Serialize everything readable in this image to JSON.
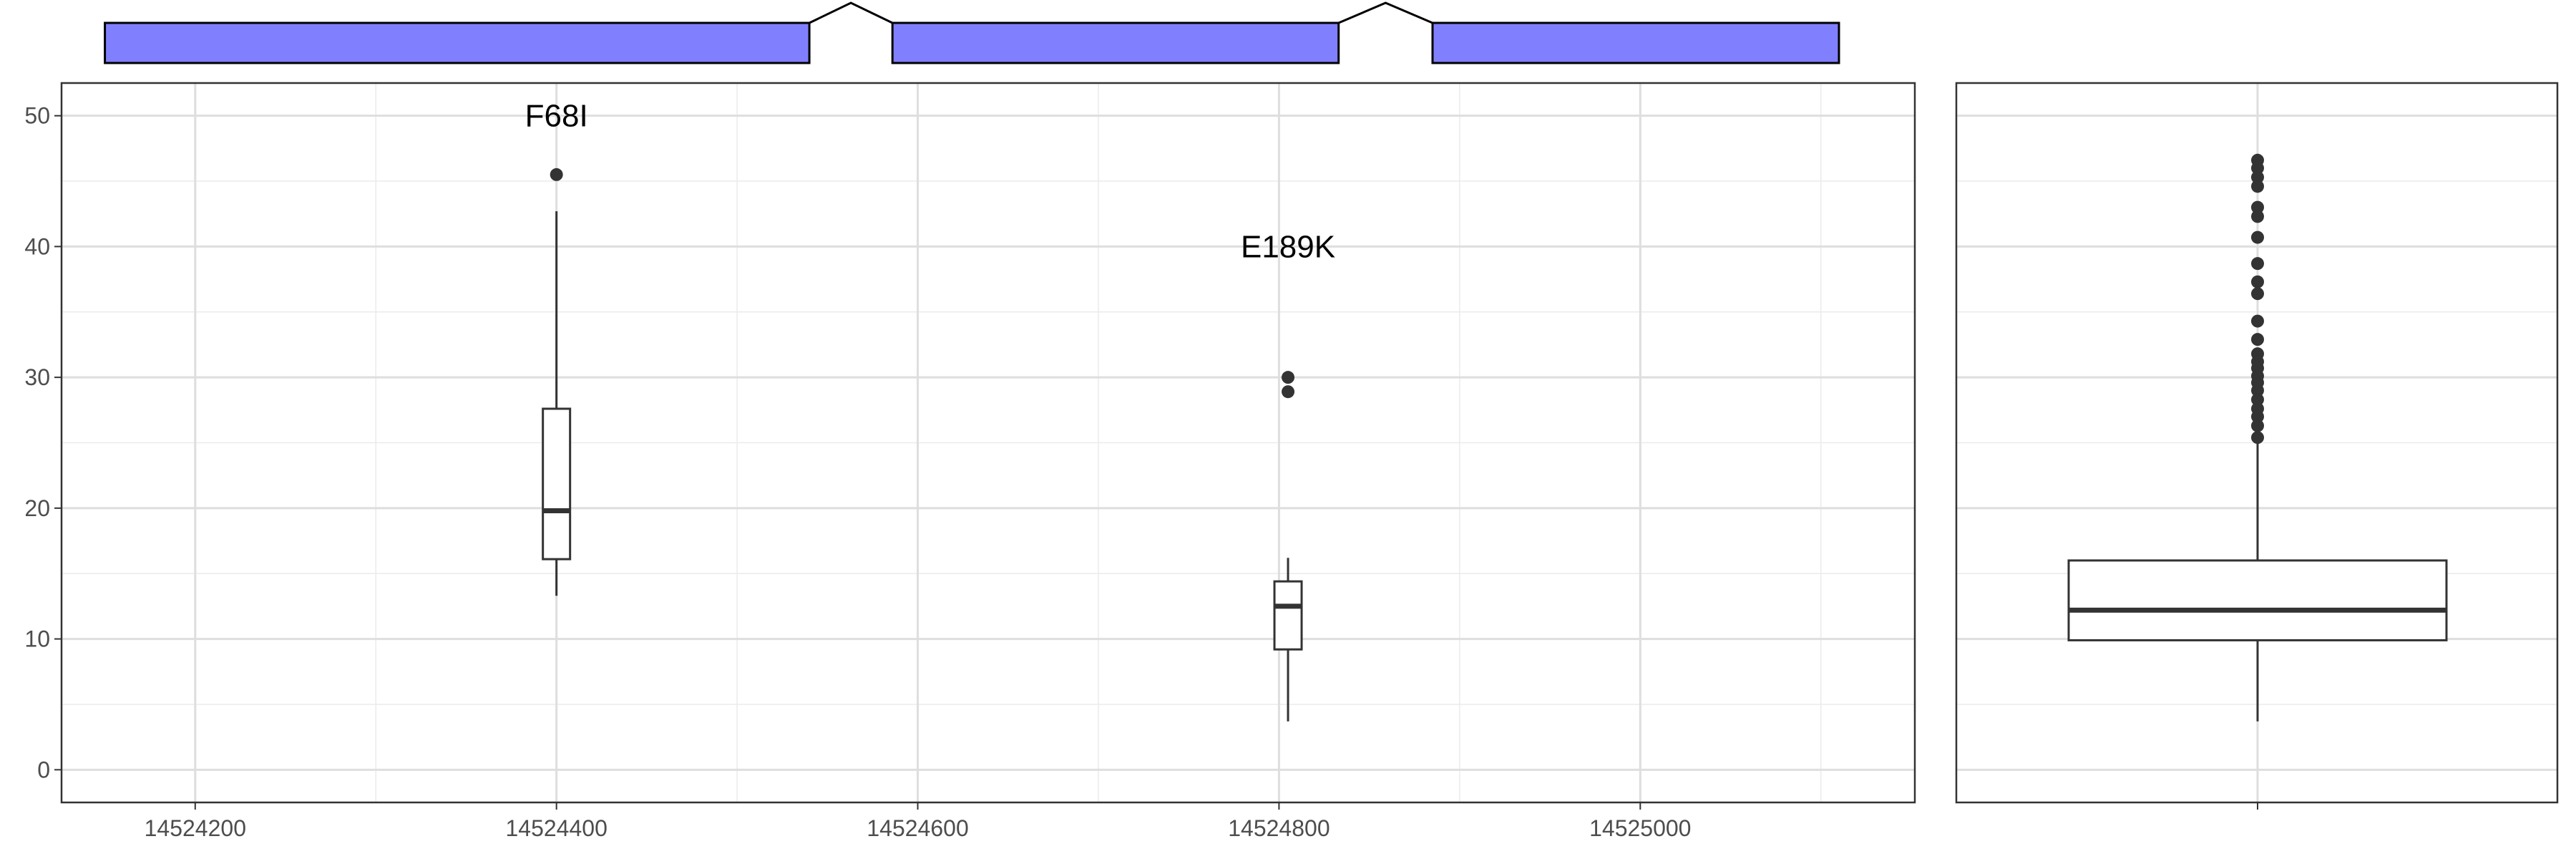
{
  "chart_data": [
    {
      "type": "gene-structure",
      "features": [
        {
          "kind": "exon",
          "start": 14524150,
          "end": 14524540
        },
        {
          "kind": "intron",
          "start": 14524540,
          "end": 14524586
        },
        {
          "kind": "exon",
          "start": 14524586,
          "end": 14524833
        },
        {
          "kind": "intron",
          "start": 14524833,
          "end": 14524885
        },
        {
          "kind": "exon",
          "start": 14524885,
          "end": 14525110
        }
      ],
      "exon_color": "#8080ff",
      "xlim": [
        14524126,
        14525152
      ]
    },
    {
      "type": "boxplot",
      "xlim": [
        14524126,
        14525152
      ],
      "ylim": [
        -2.5,
        52.5
      ],
      "x_ticks": [
        "14524200",
        "14524400",
        "14524600",
        "14524800",
        "14525000"
      ],
      "y_ticks": [
        "0",
        "10",
        "20",
        "30",
        "40",
        "50"
      ],
      "grid": true,
      "boxes": [
        {
          "x": 14524400,
          "label": "F68I",
          "label_y": 50,
          "min": 13.3,
          "q1": 16.1,
          "median": 19.8,
          "q3": 27.6,
          "max": 42.7,
          "outliers": [
            45.5
          ]
        },
        {
          "x": 14524805,
          "label": "E189K",
          "label_y": 40,
          "min": 3.7,
          "q1": 9.2,
          "median": 12.5,
          "q3": 14.4,
          "max": 16.2,
          "outliers": [
            30.0,
            28.9
          ]
        }
      ]
    },
    {
      "type": "boxplot",
      "ylim": [
        -2.5,
        52.5
      ],
      "grid": true,
      "box": {
        "min": 3.7,
        "q1": 9.9,
        "median": 12.2,
        "q3": 16.0,
        "max": 25.5,
        "outliers": [
          46.6,
          46.0,
          45.3,
          44.6,
          43.0,
          42.3,
          40.7,
          38.7,
          37.3,
          36.4,
          34.3,
          32.9,
          31.8,
          31.2,
          30.7,
          30.1,
          29.6,
          29.0,
          28.3,
          27.6,
          27.0,
          26.3,
          25.4
        ]
      }
    }
  ]
}
